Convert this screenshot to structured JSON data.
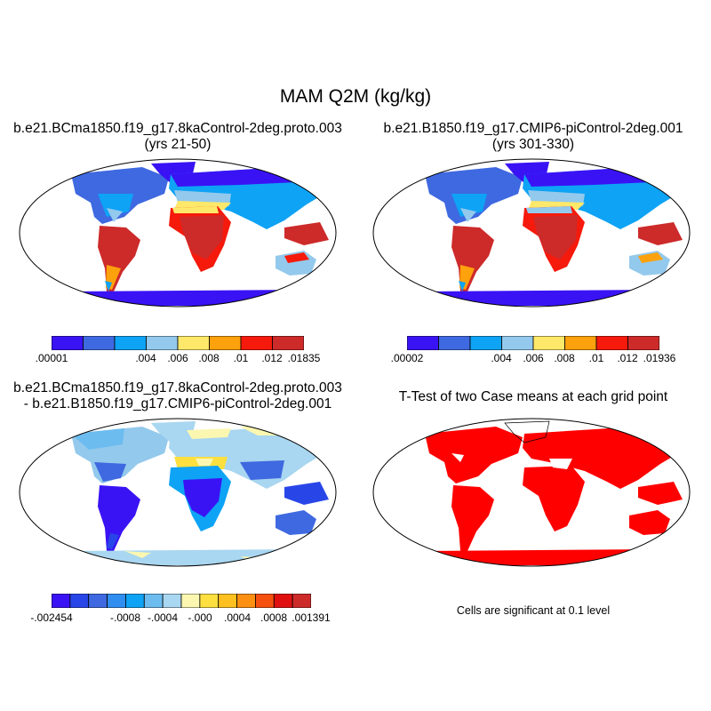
{
  "figure": {
    "title": "MAM Q2M (kg/kg)"
  },
  "panels": [
    {
      "title_line1": "b.e21.BCma1850.f19_g17.8kaControl-2deg.proto.003",
      "title_line2": "(yrs 21-50)",
      "colorbar": {
        "colors": [
          "#3a13f5",
          "#3f69e0",
          "#0ea3f5",
          "#93c9ec",
          "#fde869",
          "#fda10c",
          "#f51a0c",
          "#cd2a2a"
        ],
        "tick_labels": [
          ".00001",
          ".004",
          ".006",
          ".008",
          ".01",
          ".012",
          ".01835"
        ]
      }
    },
    {
      "title_line1": "b.e21.B1850.f19_g17.CMIP6-piControl-2deg.001",
      "title_line2": "(yrs 301-330)",
      "colorbar": {
        "colors": [
          "#3a13f5",
          "#3f69e0",
          "#0ea3f5",
          "#93c9ec",
          "#fde869",
          "#fda10c",
          "#f51a0c",
          "#cd2a2a"
        ],
        "tick_labels": [
          ".00002",
          ".004",
          ".006",
          ".008",
          ".01",
          ".012",
          ".01936"
        ]
      }
    },
    {
      "title_line1": "b.e21.BCma1850.f19_g17.8kaControl-2deg.proto.003",
      "title_line2": "- b.e21.B1850.f19_g17.CMIP6-piControl-2deg.001",
      "colorbar": {
        "colors": [
          "#3a13f5",
          "#2846e8",
          "#3f69e0",
          "#2f8ef0",
          "#0ea3f5",
          "#6cbcf0",
          "#a9d6f0",
          "#fbf7b0",
          "#fde040",
          "#fdc020",
          "#fd9010",
          "#f55010",
          "#e01010",
          "#cd2a2a"
        ],
        "tick_labels": [
          "-.002454",
          "-.0008",
          "-.0004",
          "-.000",
          ".0004",
          ".0008",
          ".001391"
        ]
      }
    },
    {
      "title_line1": "T-Test of two Case means at each grid point",
      "footnote": "Cells are significant at 0.1 level",
      "significant_color": "#ff0000"
    }
  ]
}
